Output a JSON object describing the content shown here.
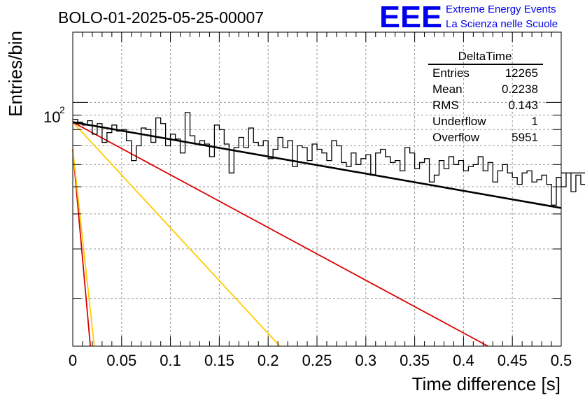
{
  "chart_data": {
    "type": "histogram",
    "title": "BOLO-01-2025-05-25-00007",
    "xlabel": "Time difference [s]",
    "ylabel": "Entries/bin",
    "xlim": [
      0,
      0.5
    ],
    "ylim": [
      13.5,
      178
    ],
    "yscale": "log",
    "grid": true,
    "x_ticks": [
      "0",
      "0.05",
      "0.1",
      "0.15",
      "0.2",
      "0.25",
      "0.3",
      "0.35",
      "0.4",
      "0.45",
      "0.5"
    ],
    "y_tick_label": "10",
    "y_tick_exponent": "2",
    "bin_width": 0.005,
    "histogram_color": "#000000",
    "histogram": [
      87,
      85,
      83,
      86,
      77,
      84,
      72,
      78,
      83,
      79,
      80,
      73,
      62,
      70,
      81,
      80,
      72,
      88,
      84,
      70,
      77,
      74,
      66,
      92,
      76,
      71,
      73,
      71,
      64,
      83,
      80,
      71,
      56,
      69,
      75,
      69,
      81,
      72,
      70,
      73,
      63,
      68,
      75,
      69,
      73,
      59,
      70,
      69,
      62,
      71,
      68,
      66,
      62,
      73,
      70,
      61,
      59,
      66,
      60,
      63,
      65,
      55,
      66,
      68,
      64,
      61,
      62,
      57,
      69,
      66,
      58,
      61,
      63,
      52,
      55,
      62,
      58,
      64,
      60,
      62,
      57,
      59,
      60,
      64,
      57,
      61,
      52,
      57,
      60,
      56,
      54,
      51,
      56,
      57,
      52,
      53,
      55,
      51,
      43,
      54,
      50,
      56,
      48,
      55,
      51,
      52,
      48,
      57,
      55,
      49,
      51,
      56,
      47,
      50,
      54,
      49,
      44,
      51,
      56,
      51,
      60,
      48,
      53,
      57,
      58,
      52,
      56,
      53,
      43,
      58,
      55,
      57,
      62,
      53,
      56,
      60,
      48,
      53,
      50,
      58,
      46,
      53,
      58,
      55,
      56,
      55,
      60,
      54,
      48,
      52,
      51,
      54,
      60,
      56,
      52,
      48,
      61,
      55,
      53,
      58,
      50,
      55,
      57,
      49,
      54,
      53,
      45,
      55,
      53,
      61,
      47,
      48,
      58,
      57,
      55,
      52,
      54,
      53,
      55,
      54,
      56,
      53,
      58,
      55,
      59,
      52,
      56,
      53,
      52,
      57,
      51,
      55,
      53,
      52,
      55,
      52,
      50,
      54,
      54,
      56
    ],
    "fit_color": "#000000",
    "fit": {
      "x": [
        0,
        0.5
      ],
      "y": [
        85,
        42
      ]
    },
    "components": [
      {
        "color": "#dd0000",
        "x": [
          0,
          0.018
        ],
        "y": [
          68,
          13.5
        ]
      },
      {
        "color": "#ffcc00",
        "x": [
          0,
          0.022
        ],
        "y": [
          68,
          13.5
        ]
      },
      {
        "color": "#ffcc00",
        "x": [
          0,
          0.212
        ],
        "y": [
          85,
          13.5
        ]
      },
      {
        "color": "#dd0000",
        "x": [
          0,
          0.425
        ],
        "y": [
          85,
          13.5
        ]
      }
    ]
  },
  "stats": {
    "title": "DeltaTime",
    "rows": [
      {
        "label": "Entries",
        "value": "12265"
      },
      {
        "label": "Mean",
        "value": "0.2238"
      },
      {
        "label": "RMS",
        "value": "0.143"
      },
      {
        "label": "Underflow",
        "value": "1"
      },
      {
        "label": "Overflow",
        "value": "5951"
      }
    ]
  },
  "brand": {
    "logo": "EEE",
    "line1": "Extreme Energy Events",
    "line2": "La Scienza nelle Scuole",
    "color": "#0000ee"
  }
}
